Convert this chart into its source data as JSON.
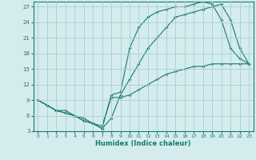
{
  "xlabel": "Humidex (Indice chaleur)",
  "bg_color": "#d4ecee",
  "grid_color": "#a8cdd0",
  "line_color": "#1a7a6e",
  "xlim": [
    -0.5,
    23.5
  ],
  "ylim": [
    3,
    28
  ],
  "xticks": [
    0,
    1,
    2,
    3,
    4,
    5,
    6,
    7,
    8,
    9,
    10,
    11,
    12,
    13,
    14,
    15,
    16,
    17,
    18,
    19,
    20,
    21,
    22,
    23
  ],
  "yticks": [
    3,
    6,
    9,
    12,
    15,
    18,
    21,
    24,
    27
  ],
  "series1_x": [
    0,
    1,
    2,
    3,
    4,
    5,
    6,
    7,
    8,
    9,
    10,
    11,
    12,
    13,
    14,
    15,
    16,
    17,
    18,
    19,
    20,
    21,
    22,
    23
  ],
  "series1_y": [
    9,
    8,
    7,
    6.5,
    6,
    5,
    4.5,
    3.5,
    10,
    10.5,
    19,
    23,
    25,
    26,
    26.5,
    27,
    27,
    27.5,
    28,
    27.5,
    24.5,
    19,
    17,
    16
  ],
  "series2_x": [
    0,
    1,
    2,
    3,
    4,
    5,
    6,
    7,
    8,
    9,
    10,
    11,
    12,
    13,
    14,
    15,
    16,
    17,
    18,
    19,
    20,
    21,
    22,
    23
  ],
  "series2_y": [
    9,
    8,
    7,
    6.5,
    6,
    5,
    4.5,
    3.5,
    5.5,
    10,
    13,
    16,
    19,
    21,
    23,
    25,
    25.5,
    26,
    26.5,
    27,
    27.5,
    24.5,
    19,
    16
  ],
  "series3_x": [
    0,
    2,
    3,
    4,
    5,
    6,
    7,
    8,
    9,
    10,
    11,
    12,
    13,
    14,
    15,
    16,
    17,
    18,
    19,
    20,
    21,
    22,
    23
  ],
  "series3_y": [
    9,
    7,
    7,
    6,
    5.5,
    4.5,
    4,
    9.5,
    9.5,
    10,
    11,
    12,
    13,
    14,
    14.5,
    15,
    15.5,
    15.5,
    16,
    16,
    16,
    16,
    16
  ]
}
